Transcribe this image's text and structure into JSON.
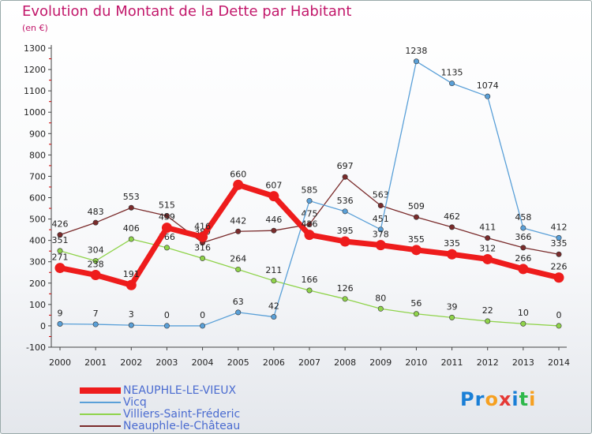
{
  "title": "Evolution du Montant de la Dette par Habitant",
  "subtitle": "(en €)",
  "logo": {
    "parts": [
      "Pr",
      "o",
      "x",
      "i",
      "t",
      "i"
    ],
    "colors": [
      "#1a7fd6",
      "#f6a020",
      "#e53935",
      "#1a7fd6",
      "#2eb84b",
      "#f6a020"
    ]
  },
  "chart_data": {
    "type": "line",
    "x": [
      2000,
      2001,
      2002,
      2003,
      2004,
      2005,
      2006,
      2007,
      2008,
      2009,
      2010,
      2011,
      2012,
      2013,
      2014
    ],
    "ylim": [
      -100,
      1300
    ],
    "yticks": [
      -100,
      0,
      100,
      200,
      300,
      400,
      500,
      600,
      700,
      800,
      900,
      1000,
      1100,
      1200,
      1300
    ],
    "grid": false,
    "legend_position": "bottom-left",
    "series": [
      {
        "name": "NEAUPHLE-LE-VIEUX",
        "color": "#ee1c1c",
        "values": [
          271,
          238,
          191,
          459,
          416,
          660,
          607,
          426,
          395,
          378,
          355,
          335,
          312,
          266,
          226
        ]
      },
      {
        "name": "Vicq",
        "color": "#5aa0d8",
        "values": [
          9,
          7,
          3,
          0,
          0,
          63,
          42,
          585,
          536,
          451,
          1238,
          1135,
          1074,
          458,
          412
        ]
      },
      {
        "name": "Villiers-Saint-Fréderic",
        "color": "#8fd34a",
        "values": [
          351,
          304,
          406,
          366,
          316,
          264,
          211,
          166,
          126,
          80,
          56,
          39,
          22,
          10,
          0
        ]
      },
      {
        "name": "Neauphle-le-Château",
        "color": "#7a2b2b",
        "values": [
          426,
          483,
          553,
          515,
          389,
          442,
          446,
          475,
          697,
          563,
          509,
          462,
          411,
          366,
          335
        ]
      }
    ]
  }
}
